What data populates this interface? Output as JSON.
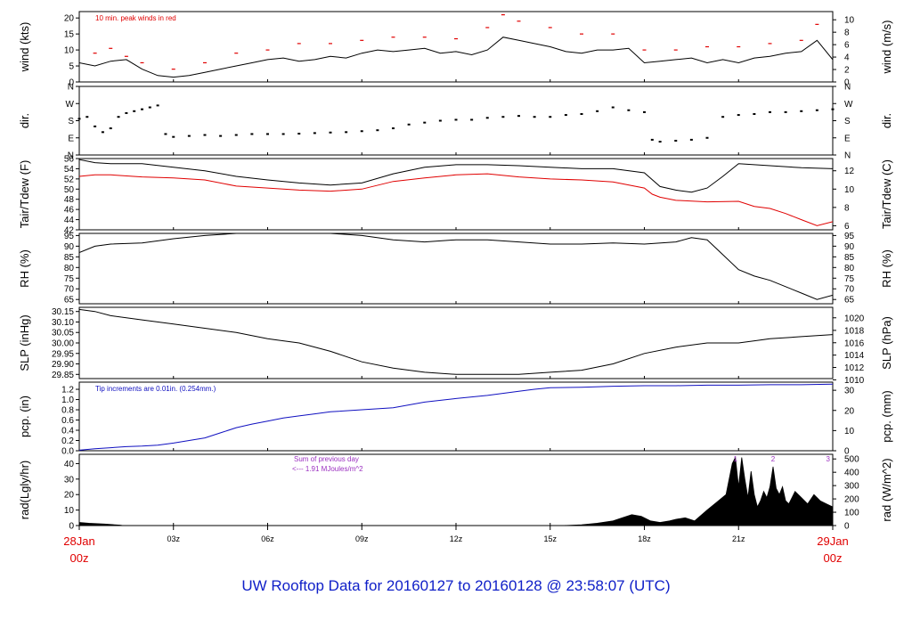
{
  "footer_title": "UW Rooftop Data for 20160127  to  20160128 @ 23:58:07  (UTC)",
  "colors": {
    "black": "#000000",
    "red": "#e00000",
    "blue": "#1010c0",
    "purple": "#9b30c0",
    "footer": "#1020c8"
  },
  "x_axis": {
    "range_hours": [
      0,
      24
    ],
    "tick_hours": [
      0,
      3,
      6,
      9,
      12,
      15,
      18,
      21,
      24
    ],
    "tick_labels": [
      "",
      "03z",
      "06z",
      "09z",
      "12z",
      "15z",
      "18z",
      "21z",
      ""
    ],
    "start_label": [
      "28Jan",
      "00z"
    ],
    "end_label": [
      "29Jan",
      "00z"
    ]
  },
  "chart_data": [
    {
      "type": "line",
      "id": "wind",
      "ylabel": "wind (kts)",
      "ylabel_right": "wind (m/s)",
      "ylim": [
        0,
        22
      ],
      "yticks": [
        0,
        5,
        10,
        15,
        20
      ],
      "yticks_right": [
        "0",
        "2",
        "4",
        "6",
        "8",
        "10"
      ],
      "yticks_right_values": [
        0,
        3.89,
        7.78,
        11.66,
        15.55,
        19.44
      ],
      "annotation": "10 min. peak winds in red",
      "series": [
        {
          "role": "wind",
          "color": "#000000",
          "x": [
            0,
            0.5,
            1.0,
            1.5,
            2.0,
            2.5,
            3.0,
            3.5,
            4.0,
            4.5,
            5.0,
            5.5,
            6.0,
            6.5,
            7.0,
            7.5,
            8.0,
            8.5,
            9.0,
            9.5,
            10.0,
            10.5,
            11.0,
            11.5,
            12.0,
            12.5,
            13.0,
            13.5,
            14.0,
            14.5,
            15.0,
            15.5,
            16.0,
            16.5,
            17.0,
            17.5,
            18.0,
            18.5,
            19.0,
            19.5,
            20.0,
            20.5,
            21.0,
            21.5,
            22.0,
            22.5,
            23.0,
            23.5,
            24.0
          ],
          "y": [
            6,
            5,
            6.5,
            7,
            4,
            2,
            1.5,
            2,
            3,
            4,
            5,
            6,
            7,
            7.5,
            6.5,
            7,
            8,
            7.5,
            9,
            10,
            9.5,
            10,
            10.5,
            9,
            9.5,
            8.5,
            10,
            14,
            13,
            12,
            11,
            9.5,
            9,
            10,
            10,
            10.5,
            6,
            6.5,
            7,
            7.5,
            6,
            7,
            6,
            7.5,
            8,
            9,
            9.5,
            13,
            7
          ]
        },
        {
          "role": "peak",
          "color": "#e00000",
          "x": [
            0.5,
            1.0,
            1.5,
            2.0,
            3.0,
            4.0,
            5.0,
            6.0,
            7.0,
            8.0,
            9.0,
            10.0,
            11.0,
            12.0,
            13.0,
            13.5,
            14.0,
            15.0,
            16.0,
            17.0,
            18.0,
            19.0,
            20.0,
            21.0,
            22.0,
            23.0,
            23.5
          ],
          "y": [
            9,
            10.5,
            8,
            6,
            4,
            6,
            9,
            10,
            12,
            12,
            13,
            14,
            14,
            13.5,
            17,
            21,
            19,
            17,
            15,
            15,
            10,
            10,
            11,
            11,
            12,
            13,
            18
          ]
        }
      ]
    },
    {
      "type": "scatter",
      "id": "direction",
      "ylabel": "dir.",
      "ylabel_right": "dir.",
      "ylim": [
        0,
        360
      ],
      "yticks": [
        0,
        90,
        180,
        270,
        360
      ],
      "ytick_labels": [
        "N",
        "E",
        "S",
        "W",
        "N"
      ],
      "series": [
        {
          "color": "#000000",
          "x": [
            0,
            0.25,
            0.5,
            0.75,
            1.0,
            1.25,
            1.5,
            1.75,
            2.0,
            2.25,
            2.5,
            2.75,
            3.0,
            3.5,
            4.0,
            4.5,
            5.0,
            5.5,
            6.0,
            6.5,
            7.0,
            7.5,
            8.0,
            8.5,
            9.0,
            9.5,
            10.0,
            10.5,
            11.0,
            11.5,
            12.0,
            12.5,
            13.0,
            13.5,
            14.0,
            14.5,
            15.0,
            15.5,
            16.0,
            16.5,
            17.0,
            17.5,
            18.0,
            18.25,
            18.5,
            19.0,
            19.5,
            20.0,
            20.5,
            21.0,
            21.5,
            22.0,
            22.5,
            23.0,
            23.5,
            24.0
          ],
          "y": [
            190,
            200,
            150,
            120,
            140,
            200,
            220,
            230,
            240,
            250,
            260,
            110,
            95,
            100,
            105,
            100,
            105,
            110,
            110,
            110,
            112,
            115,
            118,
            120,
            125,
            130,
            140,
            160,
            170,
            180,
            185,
            185,
            195,
            200,
            205,
            200,
            200,
            210,
            215,
            230,
            250,
            235,
            225,
            80,
            70,
            75,
            80,
            90,
            200,
            210,
            215,
            225,
            225,
            230,
            235,
            240
          ]
        }
      ]
    },
    {
      "type": "line",
      "id": "temperature",
      "ylabel": "Tair/Tdew (F)",
      "ylabel_right": "Tair/Tdew (C)",
      "ylim": [
        42,
        56
      ],
      "yticks": [
        42,
        44,
        46,
        48,
        50,
        52,
        54,
        56
      ],
      "yticks_right": [
        "6",
        "8",
        "10",
        "12"
      ],
      "yticks_right_values": [
        42.8,
        46.4,
        50.0,
        53.6
      ],
      "series": [
        {
          "role": "Tair",
          "color": "#000000",
          "x": [
            0,
            0.5,
            1,
            2,
            3,
            4,
            5,
            6,
            7,
            8,
            9,
            10,
            11,
            12,
            13,
            14,
            15,
            16,
            17,
            18,
            18.5,
            19,
            19.5,
            20,
            20.5,
            21,
            22,
            23,
            24
          ],
          "y": [
            55.8,
            55.2,
            55.0,
            55.0,
            54.3,
            53.6,
            52.5,
            51.8,
            51.2,
            50.8,
            51.2,
            53.0,
            54.3,
            54.8,
            54.8,
            54.6,
            54.3,
            54.0,
            54.0,
            53.2,
            50.5,
            49.8,
            49.4,
            50.2,
            52.5,
            55.0,
            54.6,
            54.2,
            54.0
          ]
        },
        {
          "role": "Tdew",
          "color": "#e00000",
          "x": [
            0,
            0.5,
            1,
            2,
            3,
            4,
            5,
            6,
            7,
            8,
            9,
            10,
            11,
            12,
            13,
            14,
            15,
            16,
            17,
            18,
            18.25,
            18.5,
            19,
            20,
            21,
            21.5,
            22,
            22.5,
            23,
            23.5,
            24
          ],
          "y": [
            52.5,
            52.8,
            52.8,
            52.4,
            52.2,
            51.8,
            50.6,
            50.2,
            49.8,
            49.6,
            50.0,
            51.5,
            52.2,
            52.8,
            53.0,
            52.4,
            52.0,
            51.8,
            51.4,
            50.2,
            49.0,
            48.4,
            47.8,
            47.5,
            47.6,
            46.6,
            46.2,
            45.2,
            44.0,
            42.8,
            43.6
          ]
        }
      ]
    },
    {
      "type": "line",
      "id": "humidity",
      "ylabel": "RH (%)",
      "ylabel_right": "RH (%)",
      "ylim": [
        63,
        96
      ],
      "yticks": [
        65,
        70,
        75,
        80,
        85,
        90,
        95
      ],
      "yticks_right": [
        "65",
        "70",
        "75",
        "80",
        "85",
        "90",
        "95"
      ],
      "yticks_right_values": [
        65,
        70,
        75,
        80,
        85,
        90,
        95
      ],
      "series": [
        {
          "color": "#000000",
          "x": [
            0,
            0.5,
            1,
            2,
            3,
            4,
            5,
            6,
            7,
            8,
            9,
            10,
            11,
            12,
            13,
            14,
            15,
            16,
            17,
            18,
            19,
            19.5,
            20,
            20.5,
            21,
            21.5,
            22,
            22.5,
            23,
            23.5,
            24
          ],
          "y": [
            87,
            90,
            91,
            91.5,
            93.5,
            95,
            96,
            96.5,
            96.5,
            96,
            95,
            93,
            92,
            93,
            93,
            92,
            91,
            91,
            91.5,
            91,
            92,
            94,
            93,
            86,
            79,
            76,
            74,
            71,
            68,
            65,
            67
          ]
        }
      ]
    },
    {
      "type": "line",
      "id": "pressure",
      "ylabel": "SLP (inHg)",
      "ylabel_right": "SLP (hPa)",
      "ylim": [
        29.83,
        30.17
      ],
      "yticks": [
        29.85,
        29.9,
        29.95,
        30.0,
        30.05,
        30.1,
        30.15
      ],
      "ytick_labels": [
        "29.85",
        "29.90",
        "29.95",
        "30.00",
        "30.05",
        "30.10",
        "30.15"
      ],
      "yticks_right": [
        "1010",
        "1012",
        "1014",
        "1016",
        "1018",
        "1020"
      ],
      "yticks_right_values": [
        29.824,
        29.883,
        29.942,
        30.001,
        30.06,
        30.12
      ],
      "series": [
        {
          "color": "#000000",
          "x": [
            0,
            0.5,
            1,
            2,
            3,
            4,
            5,
            6,
            7,
            8,
            9,
            10,
            11,
            12,
            13,
            14,
            15,
            16,
            17,
            18,
            19,
            20,
            21,
            22,
            23,
            24
          ],
          "y": [
            30.16,
            30.15,
            30.13,
            30.11,
            30.09,
            30.07,
            30.05,
            30.02,
            30.0,
            29.96,
            29.91,
            29.88,
            29.86,
            29.85,
            29.85,
            29.85,
            29.86,
            29.87,
            29.9,
            29.95,
            29.98,
            30.0,
            30.0,
            30.02,
            30.03,
            30.04
          ]
        }
      ]
    },
    {
      "type": "line",
      "id": "precipitation",
      "ylabel": "pcp. (in)",
      "ylabel_right": "pcp. (mm)",
      "ylim": [
        0,
        1.34
      ],
      "yticks": [
        0,
        0.2,
        0.4,
        0.6,
        0.8,
        1.0,
        1.2
      ],
      "ytick_labels": [
        "0.0",
        "0.2",
        "0.4",
        "0.6",
        "0.8",
        "1.0",
        "1.2"
      ],
      "yticks_right": [
        "0",
        "10",
        "20",
        "30"
      ],
      "yticks_right_values": [
        0,
        0.3937,
        0.7874,
        1.1811
      ],
      "annotation": "Tip increments are 0.01in. (0.254mm.)",
      "series": [
        {
          "color": "#1010c0",
          "x": [
            0,
            0.5,
            1,
            1.5,
            2,
            2.5,
            3,
            3.5,
            4,
            4.5,
            5,
            5.5,
            6,
            6.5,
            7,
            7.5,
            8,
            9,
            10,
            11,
            12,
            13,
            14,
            14.5,
            15,
            16,
            17,
            18,
            19,
            20,
            21,
            22,
            23,
            24
          ],
          "y": [
            0.01,
            0.04,
            0.06,
            0.08,
            0.09,
            0.11,
            0.15,
            0.2,
            0.25,
            0.35,
            0.45,
            0.52,
            0.58,
            0.64,
            0.68,
            0.72,
            0.76,
            0.8,
            0.84,
            0.95,
            1.02,
            1.08,
            1.16,
            1.2,
            1.23,
            1.24,
            1.26,
            1.27,
            1.27,
            1.28,
            1.28,
            1.29,
            1.29,
            1.3
          ]
        }
      ]
    },
    {
      "type": "area",
      "id": "radiation",
      "ylabel": "rad(Lgly/hr)",
      "ylabel_right": "rad (W/m^2)",
      "ylim": [
        0,
        46
      ],
      "yticks": [
        0,
        10,
        20,
        30,
        40
      ],
      "yticks_right": [
        "0",
        "100",
        "200",
        "300",
        "400",
        "500"
      ],
      "yticks_right_values": [
        0,
        8.6,
        17.2,
        25.8,
        34.4,
        43.0
      ],
      "annotation_lines": [
        "Sum of previous day",
        "<--- 1.91 MJoules/m^2"
      ],
      "top_markers": [
        {
          "x": 20.9,
          "label": "1"
        },
        {
          "x": 22.1,
          "label": "2"
        },
        {
          "x": 23.85,
          "label": "3"
        }
      ],
      "series": [
        {
          "color": "#000000",
          "x": [
            0,
            0.3,
            0.8,
            1.3,
            1.4,
            15.4,
            16.0,
            16.5,
            17.0,
            17.3,
            17.6,
            17.9,
            18.2,
            18.5,
            18.8,
            19.0,
            19.3,
            19.6,
            20.0,
            20.3,
            20.6,
            20.8,
            20.9,
            21.0,
            21.1,
            21.2,
            21.3,
            21.4,
            21.5,
            21.6,
            21.7,
            21.8,
            21.9,
            22.0,
            22.1,
            22.2,
            22.3,
            22.4,
            22.5,
            22.6,
            22.8,
            23.0,
            23.2,
            23.4,
            23.6,
            23.8,
            24.0
          ],
          "y": [
            2,
            1.5,
            1,
            0.3,
            0,
            0,
            0.5,
            1.5,
            3,
            5,
            7,
            6,
            3,
            2,
            3,
            4,
            5,
            3,
            10,
            15,
            20,
            40,
            44,
            25,
            44,
            30,
            18,
            35,
            20,
            12,
            16,
            22,
            18,
            25,
            38,
            24,
            20,
            25,
            16,
            14,
            22,
            18,
            14,
            20,
            16,
            14,
            12
          ]
        }
      ]
    }
  ]
}
